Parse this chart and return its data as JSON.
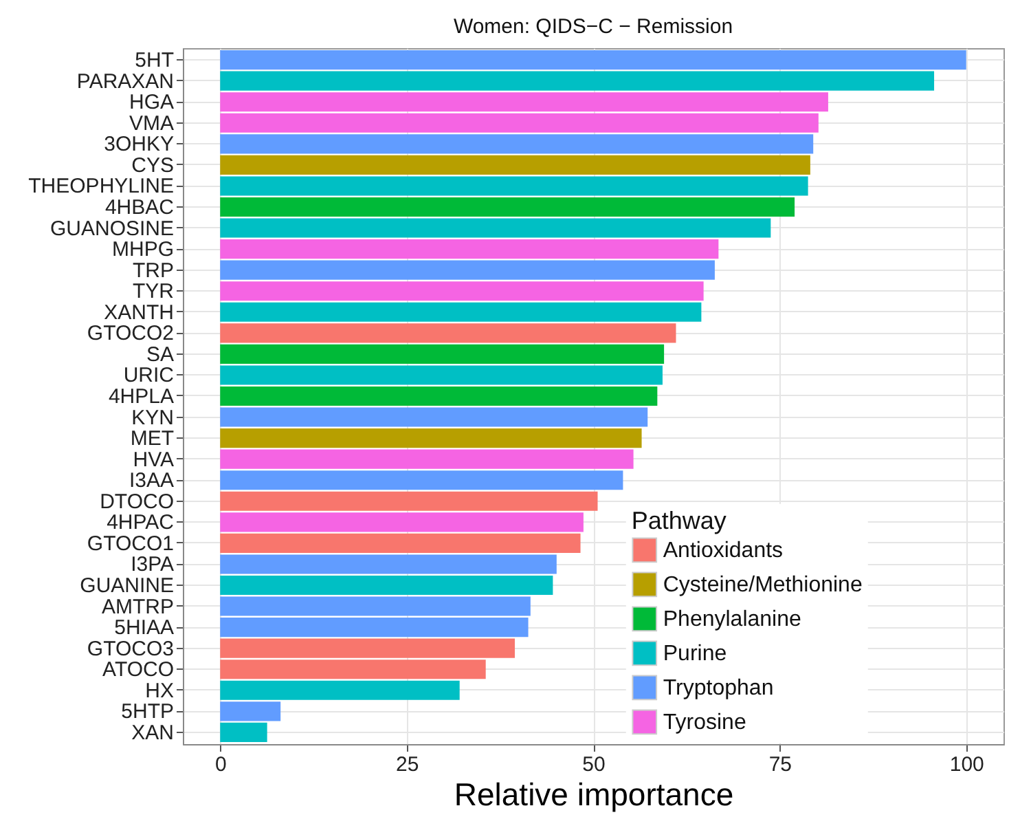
{
  "chart_data": {
    "type": "bar",
    "orientation": "horizontal",
    "title": "Women: QIDS−C − Remission",
    "xlabel": "Relative importance",
    "legend_title": "Pathway",
    "categories": [
      "5HT",
      "PARAXAN",
      "HGA",
      "VMA",
      "3OHKY",
      "CYS",
      "THEOPHYLINE",
      "4HBAC",
      "GUANOSINE",
      "MHPG",
      "TRP",
      "TYR",
      "XANTH",
      "GTOCO2",
      "SA",
      "URIC",
      "4HPLA",
      "KYN",
      "MET",
      "HVA",
      "I3AA",
      "DTOCO",
      "4HPAC",
      "GTOCO1",
      "I3PA",
      "GUANINE",
      "AMTRP",
      "5HIAA",
      "GTOCO3",
      "ATOCO",
      "HX",
      "5HTP",
      "XAN"
    ],
    "series": [
      {
        "name": "Antioxidants",
        "color": "#f8766d",
        "values": [
          null,
          null,
          null,
          null,
          null,
          null,
          null,
          null,
          null,
          null,
          null,
          null,
          null,
          61.1,
          null,
          null,
          null,
          null,
          null,
          null,
          null,
          50.6,
          null,
          48.3,
          null,
          null,
          null,
          null,
          39.5,
          35.6,
          null,
          null,
          null
        ]
      },
      {
        "name": "Cysteine/Methionine",
        "color": "#b79f00",
        "values": [
          null,
          null,
          null,
          null,
          null,
          79.1,
          null,
          null,
          null,
          null,
          null,
          null,
          null,
          null,
          null,
          null,
          null,
          null,
          56.5,
          null,
          null,
          null,
          null,
          null,
          null,
          null,
          null,
          null,
          null,
          null,
          null,
          null,
          null
        ]
      },
      {
        "name": "Phenylalanine",
        "color": "#00ba38",
        "values": [
          null,
          null,
          null,
          null,
          null,
          null,
          null,
          77.0,
          null,
          null,
          null,
          null,
          null,
          null,
          59.5,
          null,
          58.6,
          null,
          null,
          null,
          null,
          null,
          null,
          null,
          null,
          null,
          null,
          null,
          null,
          null,
          null,
          null,
          null
        ]
      },
      {
        "name": "Purine",
        "color": "#00bfc4",
        "values": [
          null,
          95.7,
          null,
          null,
          null,
          null,
          78.8,
          null,
          73.8,
          null,
          null,
          null,
          64.5,
          null,
          null,
          59.3,
          null,
          null,
          null,
          null,
          null,
          null,
          null,
          null,
          null,
          44.6,
          null,
          null,
          null,
          null,
          32.1,
          null,
          6.3
        ]
      },
      {
        "name": "Tryptophan",
        "color": "#619cff",
        "values": [
          100,
          null,
          null,
          null,
          79.5,
          null,
          null,
          null,
          null,
          null,
          66.3,
          null,
          null,
          null,
          null,
          null,
          null,
          57.3,
          null,
          null,
          54.0,
          null,
          null,
          null,
          45.1,
          null,
          41.6,
          41.3,
          null,
          null,
          null,
          8.1,
          null
        ]
      },
      {
        "name": "Tyrosine",
        "color": "#f564e3",
        "values": [
          null,
          null,
          81.5,
          80.2,
          null,
          null,
          null,
          null,
          null,
          66.8,
          null,
          64.8,
          null,
          null,
          null,
          null,
          null,
          null,
          null,
          55.4,
          null,
          null,
          48.7,
          null,
          null,
          null,
          null,
          null,
          null,
          null,
          null,
          null,
          null
        ]
      }
    ],
    "xlim": [
      -5,
      105
    ],
    "xticks": [
      0,
      25,
      50,
      75,
      100
    ],
    "grid": true,
    "legend": "bottom right"
  }
}
